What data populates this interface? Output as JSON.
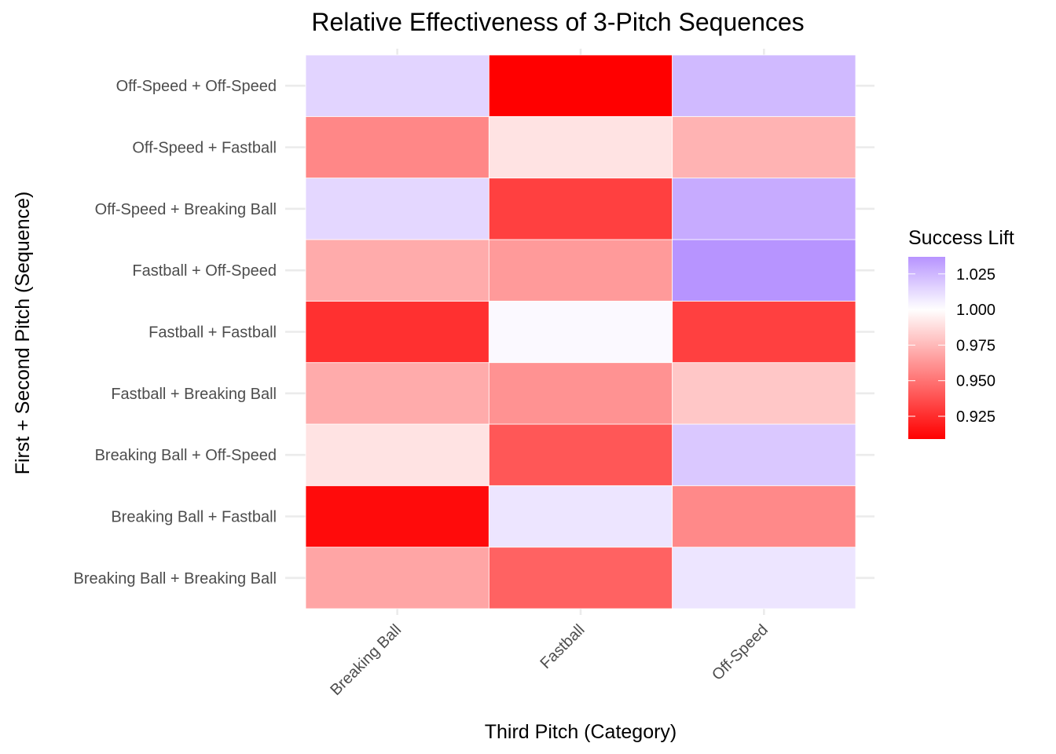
{
  "chart_data": {
    "type": "heatmap",
    "title": "Relative Effectiveness of 3-Pitch Sequences",
    "xlabel": "Third Pitch (Category)",
    "ylabel": "First + Second Pitch (Sequence)",
    "x_categories": [
      "Breaking Ball",
      "Fastball",
      "Off-Speed"
    ],
    "y_categories": [
      "Breaking Ball + Breaking Ball",
      "Breaking Ball + Fastball",
      "Breaking Ball + Off-Speed",
      "Fastball + Breaking Ball",
      "Fastball + Fastball",
      "Fastball + Off-Speed",
      "Off-Speed + Breaking Ball",
      "Off-Speed + Fastball",
      "Off-Speed + Off-Speed"
    ],
    "values": [
      [
        0.968,
        0.944,
        1.009
      ],
      [
        0.913,
        1.009,
        0.958
      ],
      [
        0.99,
        0.94,
        1.019
      ],
      [
        0.97,
        0.961,
        0.98
      ],
      [
        0.926,
        1.002,
        0.932
      ],
      [
        0.97,
        0.964,
        1.037
      ],
      [
        1.014,
        0.932,
        1.029
      ],
      [
        0.957,
        0.99,
        0.973
      ],
      [
        1.015,
        0.909,
        1.024
      ]
    ],
    "legend": {
      "title": "Success Lift",
      "breaks": [
        0.925,
        0.95,
        0.975,
        1.0,
        1.025
      ],
      "break_labels": [
        "0.925",
        "0.950",
        "0.975",
        "1.000",
        "1.025"
      ],
      "limits": [
        0.909,
        1.037
      ],
      "midpoint": 1.0,
      "low_color": "#ff0000",
      "mid_color": "#ffffff",
      "high_color": "#b794ff",
      "position": "right"
    },
    "grid": true
  }
}
